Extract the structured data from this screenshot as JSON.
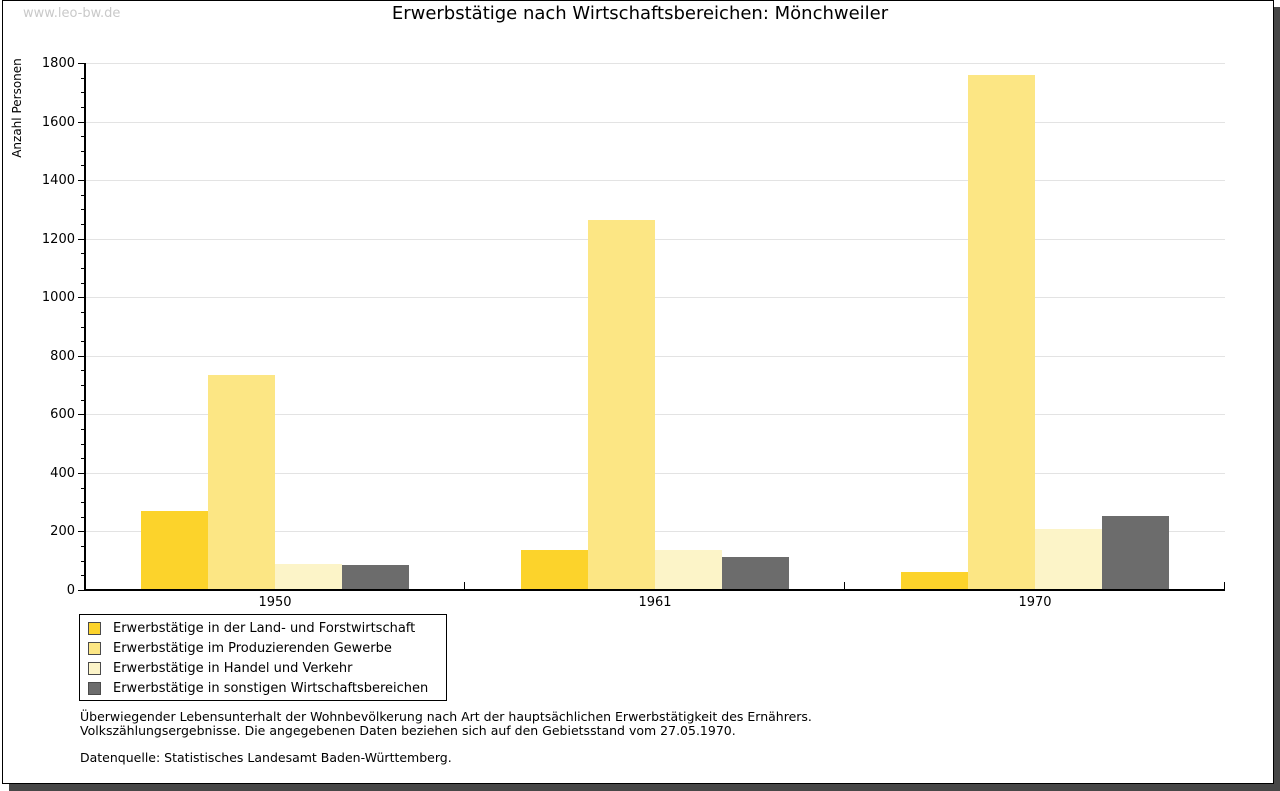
{
  "watermark": "www.leo-bw.de",
  "title": "Erwerbstätige nach Wirtschaftsbereichen: Mönchweiler",
  "chart_data": {
    "type": "bar",
    "title": "Erwerbstätige nach Wirtschaftsbereichen: Mönchweiler",
    "xlabel": "",
    "ylabel": "Anzahl Personen",
    "categories": [
      "1950",
      "1961",
      "1970"
    ],
    "series": [
      {
        "name": "Erwerbstätige in der Land- und Forstwirtschaft",
        "color": "#FCD32B",
        "values": [
          270,
          135,
          62
        ]
      },
      {
        "name": "Erwerbstätige im Produzierenden Gewerbe",
        "color": "#FCE684",
        "values": [
          735,
          1265,
          1760
        ]
      },
      {
        "name": "Erwerbstätige in Handel und Verkehr",
        "color": "#FCF4C8",
        "values": [
          90,
          135,
          210
        ]
      },
      {
        "name": "Erwerbstätige in sonstigen Wirtschaftsbereichen",
        "color": "#6C6C6C",
        "values": [
          85,
          112,
          253
        ]
      }
    ],
    "ylim": [
      0,
      1800
    ],
    "yticks": [
      0,
      200,
      400,
      600,
      800,
      1000,
      1200,
      1400,
      1600,
      1800
    ],
    "ytick_minor_step": 50,
    "grid": true,
    "gridline_color": "#e3e3e3",
    "legend_position": "bottom-left"
  },
  "footer": {
    "line1": "Überwiegender Lebensunterhalt der Wohnbevölkerung nach Art der hauptsächlichen Erwerbstätigkeit des Ernährers.",
    "line2": "Volkszählungsergebnisse. Die angegebenen Daten beziehen sich auf den Gebietsstand vom 27.05.1970.",
    "source": "Datenquelle: Statistisches Landesamt Baden-Württemberg."
  }
}
